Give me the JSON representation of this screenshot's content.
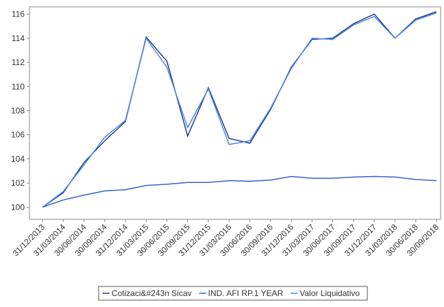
{
  "chart_data": {
    "type": "line",
    "categories": [
      "31/12/2013",
      "31/03/2014",
      "30/06/2014",
      "30/09/2014",
      "31/12/2014",
      "31/03/2015",
      "30/06/2015",
      "30/09/2015",
      "31/12/2015",
      "31/03/2016",
      "30/06/2016",
      "30/09/2016",
      "31/12/2016",
      "31/03/2017",
      "30/06/2017",
      "30/09/2017",
      "31/12/2017",
      "31/03/2018",
      "30/06/2018",
      "30/09/2018"
    ],
    "series": [
      {
        "name": "Cotizaci&#243n Sicav",
        "color": "#1f3c88",
        "values": [
          100,
          101.2,
          103.7,
          105.5,
          107.1,
          114.1,
          112.1,
          105.9,
          109.9,
          105.7,
          105.3,
          108.1,
          111.6,
          113.9,
          114.0,
          115.2,
          116.0,
          114.0,
          115.6,
          116.2
        ]
      },
      {
        "name": "IND. AFI RP.1 YEAR",
        "color": "#2f62c9",
        "values": [
          100,
          100.6,
          101.0,
          101.35,
          101.45,
          101.8,
          101.9,
          102.05,
          102.05,
          102.2,
          102.15,
          102.25,
          102.55,
          102.4,
          102.4,
          102.5,
          102.55,
          102.5,
          102.3,
          102.2
        ]
      },
      {
        "name": "Valor Liquidativo",
        "color": "#4a86e8",
        "values": [
          100,
          101.3,
          103.5,
          105.8,
          107.2,
          114.0,
          111.6,
          106.6,
          109.8,
          105.2,
          105.5,
          108.2,
          111.5,
          114.0,
          113.9,
          115.1,
          115.8,
          114.0,
          115.5,
          116.1
        ]
      }
    ],
    "ylim": [
      99,
      116.6
    ],
    "yticks": [
      100,
      102,
      104,
      106,
      108,
      110,
      112,
      114,
      116
    ],
    "legend": "bottom"
  }
}
